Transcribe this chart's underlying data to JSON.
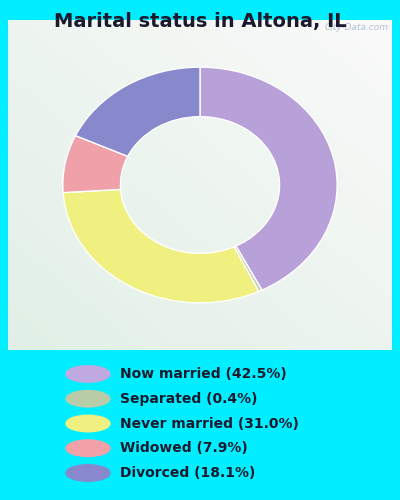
{
  "title": "Marital status in Altona, IL",
  "title_fontsize": 14,
  "title_color": "#1a1a2e",
  "bg_cyan": "#00eeff",
  "chart_bg_top_right": "#e8f8f0",
  "chart_bg_bottom_left": "#c8e8d8",
  "slices": [
    42.5,
    0.4,
    31.0,
    7.9,
    18.1
  ],
  "labels": [
    "Now married (42.5%)",
    "Separated (0.4%)",
    "Never married (31.0%)",
    "Widowed (7.9%)",
    "Divorced (18.1%)"
  ],
  "colors": [
    "#b8a0d8",
    "#b8ccb0",
    "#f0f080",
    "#f0a0a8",
    "#8888cc"
  ],
  "legend_colors": [
    "#c0a8e0",
    "#b8cca8",
    "#f0f080",
    "#f4a0a8",
    "#8888cc"
  ],
  "startangle": 90,
  "donut_outer_r": 1.0,
  "donut_width": 0.42,
  "watermark": "City-Data.com"
}
